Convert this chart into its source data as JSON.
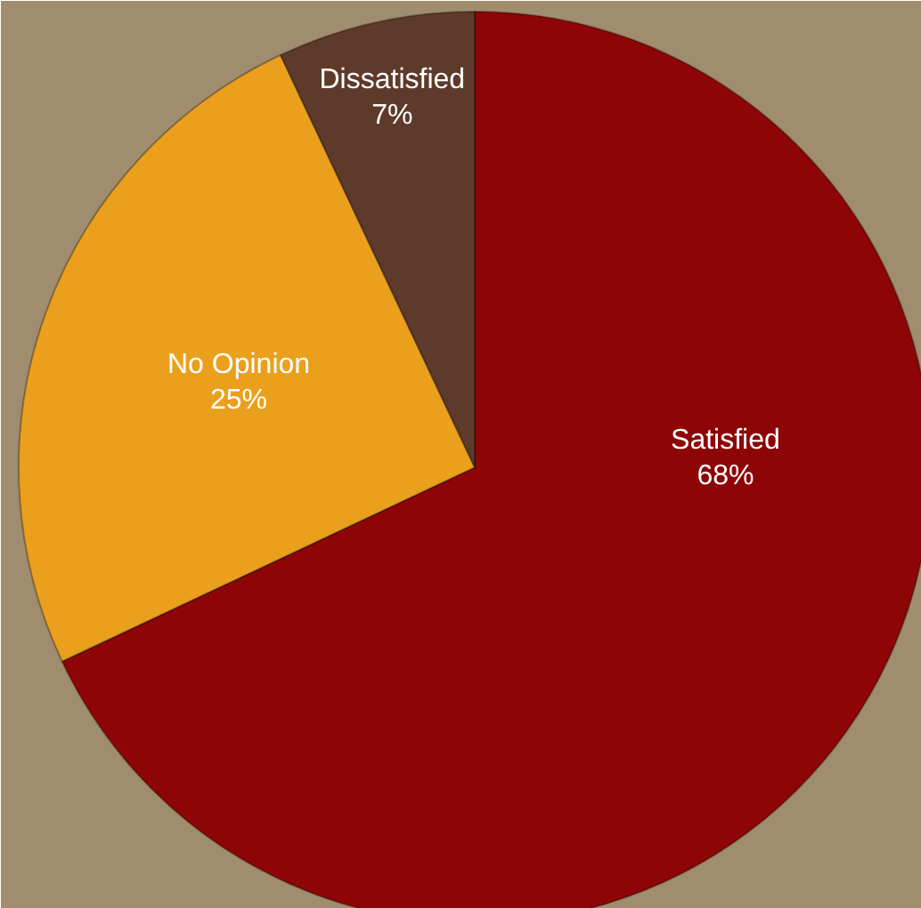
{
  "chart_data": {
    "type": "pie",
    "categories": [
      "Satisfied",
      "No Opinion",
      "Dissatisfied"
    ],
    "values": [
      68,
      25,
      7
    ],
    "value_labels": [
      "68%",
      "25%",
      "7%"
    ],
    "colors": [
      "#8e0505",
      "#eaa01c",
      "#5e3a2a"
    ]
  }
}
